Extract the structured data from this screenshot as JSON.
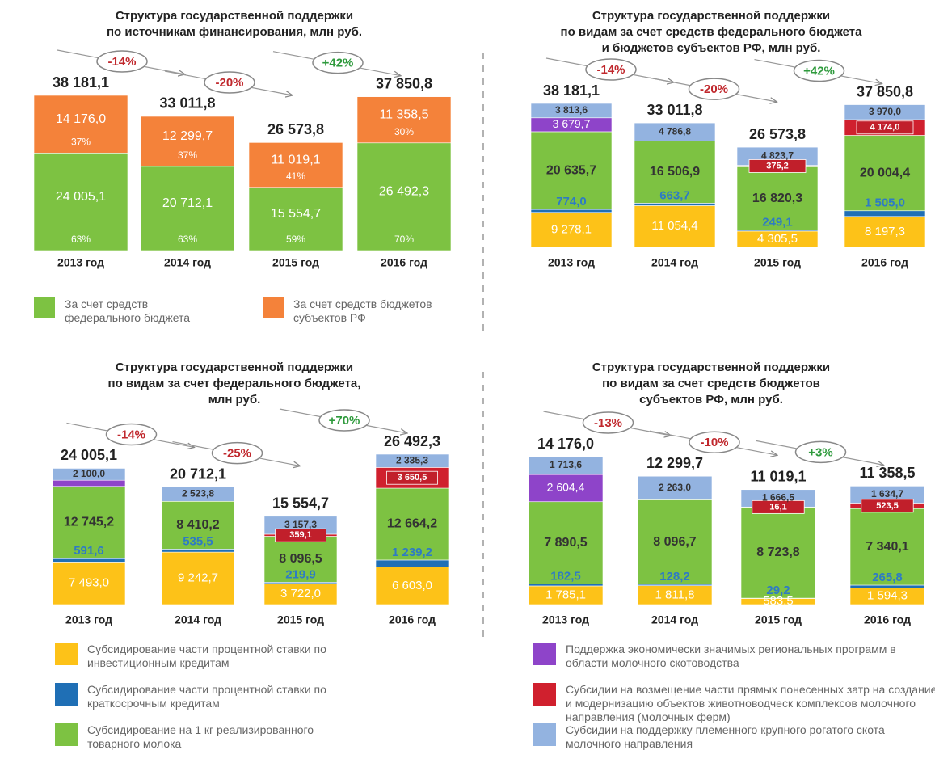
{
  "chart_data": [
    {
      "type": "bar",
      "stacked": true,
      "title": [
        "Структура государственной поддержки",
        "по источникам финансирования, млн руб."
      ],
      "categories": [
        "2013 год",
        "2014 год",
        "2015 год",
        "2016 год"
      ],
      "series": [
        {
          "name": "За счет средств федерального бюджета",
          "color": "#7dc242",
          "values": [
            24005.1,
            20712.1,
            15554.7,
            26492.3
          ],
          "value_labels": [
            "24 005,1",
            "20 712,1",
            "15 554,7",
            "26 492,3"
          ],
          "shares": [
            63,
            63,
            59,
            70
          ],
          "share_labels": [
            "63%",
            "63%",
            "59%",
            "70%"
          ]
        },
        {
          "name": "За счет средств бюджетов субъектов РФ",
          "color": "#f4823a",
          "values": [
            14176.0,
            12299.7,
            11019.1,
            11358.5
          ],
          "value_labels": [
            "14 176,0",
            "12 299,7",
            "11 019,1",
            "11 358,5"
          ],
          "shares": [
            37,
            37,
            41,
            30
          ],
          "share_labels": [
            "37%",
            "37%",
            "41%",
            "30%"
          ]
        }
      ],
      "totals": [
        38181.1,
        33011.8,
        26573.8,
        37850.8
      ],
      "total_labels": [
        "38 181,1",
        "33 011,8",
        "26 573,8",
        "37 850,8"
      ],
      "annotations": [
        {
          "text": "-14%",
          "color": "#c0282d"
        },
        {
          "text": "-20%",
          "color": "#c0282d"
        },
        {
          "text": "+42%",
          "color": "#2e9a3c"
        }
      ]
    },
    {
      "type": "bar",
      "stacked": true,
      "title": [
        "Структура государственной поддержки",
        "по видам за счет средств федерального бюджета",
        "и бюджетов субъектов РФ, млн руб."
      ],
      "categories": [
        "2013 год",
        "2014 год",
        "2015 год",
        "2016 год"
      ],
      "series": [
        {
          "color": "#fdc218",
          "values": [
            9278.1,
            11054.4,
            4305.5,
            8197.3
          ],
          "value_labels": [
            "9 278,1",
            "11 054,4",
            "4 305,5",
            "8 197,3"
          ]
        },
        {
          "color": "#1f6fb5",
          "values": [
            774.0,
            663.7,
            249.1,
            1505.0
          ],
          "value_labels": [
            "774,0",
            "663,7",
            "249,1",
            "1 505,0"
          ]
        },
        {
          "color": "#7dc242",
          "values": [
            20635.7,
            16506.9,
            16820.3,
            20004.4
          ],
          "value_labels": [
            "20 635,7",
            "16 506,9",
            "16 820,3",
            "20 004,4"
          ]
        },
        {
          "color": "#8e44c9",
          "values": [
            3679.7,
            null,
            null,
            null
          ],
          "value_labels": [
            "3 679,7",
            null,
            null,
            null
          ]
        },
        {
          "color": "#d0202e",
          "values": [
            null,
            null,
            375.2,
            4174.0
          ],
          "value_labels": [
            null,
            null,
            "375,2",
            "4 174,0"
          ]
        },
        {
          "color": "#93b3e0",
          "values": [
            3813.6,
            4786.8,
            4823.7,
            3970.0
          ],
          "value_labels": [
            "3 813,6",
            "4 786,8",
            "4 823,7",
            "3 970,0"
          ]
        }
      ],
      "totals": [
        38181.1,
        33011.8,
        26573.8,
        37850.8
      ],
      "total_labels": [
        "38 181,1",
        "33 011,8",
        "26 573,8",
        "37 850,8"
      ],
      "annotations": [
        {
          "text": "-14%",
          "color": "#c0282d"
        },
        {
          "text": "-20%",
          "color": "#c0282d"
        },
        {
          "text": "+42%",
          "color": "#2e9a3c"
        }
      ]
    },
    {
      "type": "bar",
      "stacked": true,
      "title": [
        "Структура государственной поддержки",
        "по видам за счет федерального бюджета,",
        "млн руб."
      ],
      "categories": [
        "2013 год",
        "2014 год",
        "2015 год",
        "2016 год"
      ],
      "series": [
        {
          "name": "Субсидирование части процентной ставки по инвестиционным кредитам",
          "color": "#fdc218",
          "values": [
            7493.0,
            9242.7,
            3722.0,
            6603.0
          ],
          "value_labels": [
            "7 493,0",
            "9 242,7",
            "3 722,0",
            "6 603,0"
          ]
        },
        {
          "name": "Субсидирование части процентной ставки по краткосрочным кредитам",
          "color": "#1f6fb5",
          "values": [
            591.6,
            535.5,
            219.9,
            1239.2
          ],
          "value_labels": [
            "591,6",
            "535,5",
            "219,9",
            "1 239,2"
          ]
        },
        {
          "name": "Субсидирование на 1 кг реализированного товарного молока",
          "color": "#7dc242",
          "values": [
            12745.2,
            8410.2,
            8096.5,
            12664.2
          ],
          "value_labels": [
            "12 745,2",
            "8 410,2",
            "8 096,5",
            "12 664,2"
          ]
        },
        {
          "color": "#8e44c9",
          "values": [
            1075.3,
            null,
            null,
            null
          ],
          "value_labels": [
            null,
            null,
            null,
            null
          ]
        },
        {
          "color": "#d0202e",
          "values": [
            null,
            null,
            359.1,
            3650.5
          ],
          "value_labels": [
            null,
            null,
            "359,1",
            "3 650,5"
          ]
        },
        {
          "color": "#93b3e0",
          "values": [
            2100.0,
            2523.8,
            3157.3,
            2335.3
          ],
          "value_labels": [
            "2 100,0",
            "2 523,8",
            "3 157,3",
            "2 335,3"
          ]
        }
      ],
      "totals": [
        24005.1,
        20712.1,
        15554.7,
        26492.3
      ],
      "total_labels": [
        "24 005,1",
        "20 712,1",
        "15 554,7",
        "26 492,3"
      ],
      "annotations": [
        {
          "text": "-14%",
          "color": "#c0282d"
        },
        {
          "text": "-25%",
          "color": "#c0282d"
        },
        {
          "text": "+70%",
          "color": "#2e9a3c"
        }
      ]
    },
    {
      "type": "bar",
      "stacked": true,
      "title": [
        "Структура государственной поддержки",
        "по видам за счет средств бюджетов",
        "субъектов РФ, млн руб."
      ],
      "categories": [
        "2013 год",
        "2014 год",
        "2015 год",
        "2016 год"
      ],
      "series": [
        {
          "color": "#fdc218",
          "values": [
            1785.1,
            1811.8,
            583.5,
            1594.3
          ],
          "value_labels": [
            "1 785,1",
            "1 811,8",
            "583,5",
            "1 594,3"
          ]
        },
        {
          "color": "#1f6fb5",
          "values": [
            182.5,
            128.2,
            29.2,
            265.8
          ],
          "value_labels": [
            "182,5",
            "128,2",
            "29,2",
            "265,8"
          ]
        },
        {
          "color": "#7dc242",
          "values": [
            7890.5,
            8096.7,
            8723.8,
            7340.1
          ],
          "value_labels": [
            "7 890,5",
            "8 096,7",
            "8 723,8",
            "7 340,1"
          ]
        },
        {
          "name": "Поддержка экономически значимых региональных программ в области молочного скотоводства",
          "color": "#8e44c9",
          "values": [
            2604.4,
            null,
            null,
            null
          ],
          "value_labels": [
            "2 604,4",
            null,
            null,
            null
          ]
        },
        {
          "name": "Субсидии на возмещение части прямых понесенных затр на создание и модернизацию объектов животноводческ комплексов молочного направления (молочных ферм)",
          "color": "#d0202e",
          "values": [
            null,
            null,
            16.1,
            523.5
          ],
          "value_labels": [
            null,
            null,
            "16,1",
            "523,5"
          ]
        },
        {
          "name": "Субсидии на поддержку племенного крупного рогатого скота молочного направления",
          "color": "#93b3e0",
          "values": [
            1713.6,
            2263.0,
            1666.5,
            1634.7
          ],
          "value_labels": [
            "1 713,6",
            "2 263,0",
            "1 666,5",
            "1 634,7"
          ]
        }
      ],
      "totals": [
        14176.0,
        12299.7,
        11019.1,
        11358.5
      ],
      "total_labels": [
        "14 176,0",
        "12 299,7",
        "11 019,1",
        "11 358,5"
      ],
      "annotations": [
        {
          "text": "-13%",
          "color": "#c0282d"
        },
        {
          "text": "-10%",
          "color": "#c0282d"
        },
        {
          "text": "+3%",
          "color": "#2e9a3c"
        }
      ]
    }
  ]
}
